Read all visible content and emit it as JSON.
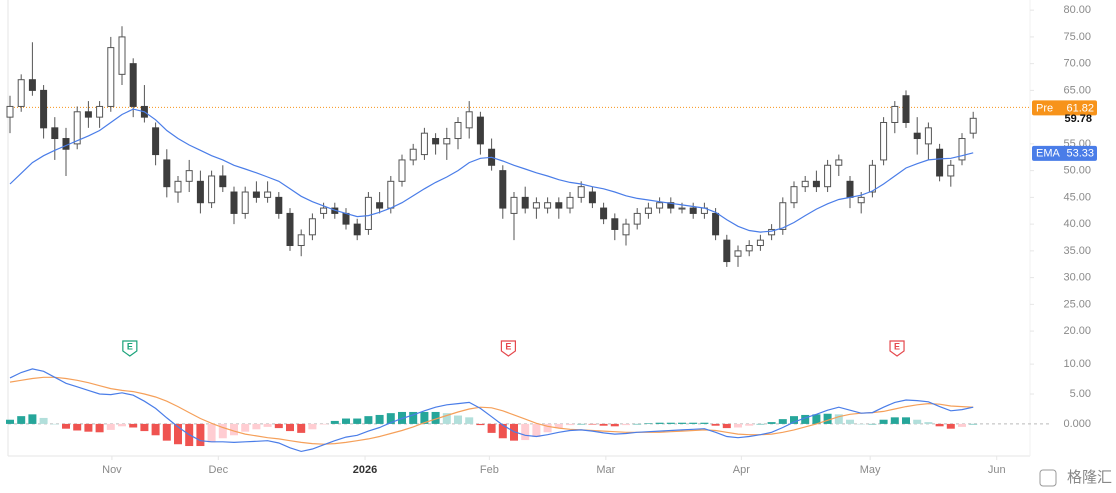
{
  "chart_data": [
    {
      "type": "candlestick",
      "open": [
        60,
        62,
        67,
        65,
        58,
        56,
        55,
        61,
        60,
        62,
        68,
        70,
        62,
        58,
        52,
        46,
        48,
        48,
        44,
        49,
        46,
        42,
        46,
        45,
        45,
        42,
        36,
        38,
        42,
        43,
        42,
        40,
        39,
        44,
        43,
        48,
        52,
        53,
        56,
        55,
        56,
        58,
        60,
        54,
        50,
        42,
        45,
        43,
        43,
        44,
        43,
        45,
        46,
        43,
        41,
        38,
        40,
        42,
        43,
        44,
        43,
        43,
        42,
        42,
        37,
        34,
        35,
        36,
        38,
        39,
        44,
        47,
        48,
        47,
        51,
        48,
        44,
        46,
        52,
        59,
        64,
        57,
        55,
        54,
        49,
        52,
        57
      ],
      "high": [
        64,
        68,
        74,
        66,
        60,
        58,
        62,
        63,
        63,
        75,
        77,
        71,
        66,
        59,
        54,
        49,
        52,
        50,
        50,
        51,
        47,
        47,
        48,
        48,
        46,
        43,
        39,
        42,
        44,
        44,
        43,
        41,
        46,
        46,
        49,
        53,
        55,
        58,
        57,
        58,
        60,
        63,
        61,
        56,
        51,
        46,
        47,
        45,
        45,
        45,
        46,
        48,
        47,
        44,
        42,
        41,
        43,
        44,
        45,
        45,
        44,
        44,
        44,
        43,
        38,
        36,
        37,
        38,
        40,
        45,
        48,
        49,
        50,
        52,
        53,
        49,
        46,
        52,
        60,
        63,
        65,
        60,
        59,
        55,
        52,
        57,
        61
      ],
      "low": [
        57,
        61,
        64,
        56,
        52,
        49,
        54,
        58,
        58,
        61,
        66,
        60,
        59,
        51,
        45,
        44,
        46,
        42,
        43,
        46,
        40,
        41,
        44,
        44,
        41,
        35,
        34,
        37,
        41,
        41,
        39,
        37,
        38,
        42,
        42,
        47,
        51,
        52,
        53,
        52,
        54,
        56,
        53,
        50,
        41,
        37,
        42,
        41,
        42,
        41,
        42,
        44,
        43,
        40,
        37,
        36,
        39,
        41,
        42,
        42,
        42,
        41,
        41,
        37,
        32,
        32,
        34,
        35,
        37,
        38,
        43,
        46,
        46,
        46,
        49,
        43,
        42,
        45,
        51,
        57,
        58,
        53,
        52,
        48,
        47,
        51,
        56
      ],
      "close": [
        62,
        67,
        65,
        58,
        56,
        54,
        61,
        60,
        62,
        73,
        75,
        62,
        60,
        53,
        47,
        48,
        50,
        44,
        49,
        47,
        42,
        46,
        45,
        46,
        42,
        36,
        38,
        41,
        43,
        42,
        40,
        38,
        45,
        43,
        48,
        52,
        54,
        57,
        55,
        56,
        59,
        61,
        55,
        51,
        43,
        45,
        43,
        44,
        44,
        43,
        45,
        47,
        44,
        41,
        39,
        40,
        42,
        43,
        44,
        43,
        43,
        42,
        43,
        38,
        33,
        35,
        36,
        37,
        39,
        44,
        47,
        48,
        47,
        51,
        52,
        45,
        45,
        51,
        59,
        62,
        59,
        56,
        58,
        49,
        51,
        56,
        59.78
      ],
      "up_color": "#ffffff",
      "down_color": "#3d3d3d",
      "wick_color": "#555555",
      "series": [
        {
          "name": "EMA",
          "color": "#4a7de8",
          "values": [
            47.5,
            49.5,
            51.5,
            52.8,
            53.8,
            54.7,
            55.6,
            56.5,
            57.5,
            59,
            60.5,
            61.5,
            61,
            59.5,
            57.5,
            56,
            54.8,
            53.8,
            52.8,
            52,
            51,
            50.3,
            49.6,
            48.8,
            48,
            46.6,
            45.2,
            44.2,
            43.4,
            42.6,
            42,
            41.4,
            41.6,
            42.2,
            43,
            44,
            45.3,
            46.6,
            47.8,
            48.8,
            50,
            51.5,
            52.3,
            52.5,
            51.8,
            51,
            50.3,
            49.6,
            49,
            48.3,
            47.8,
            47.5,
            47,
            46.6,
            46,
            45.3,
            44.8,
            44.5,
            44.2,
            43.9,
            43.6,
            43.3,
            43,
            42.2,
            40.8,
            39.6,
            38.8,
            38.5,
            38.7,
            39.3,
            40.3,
            41.6,
            42.8,
            43.8,
            44.6,
            45,
            45.4,
            46.2,
            47.5,
            49,
            50.5,
            51.3,
            52,
            52.2,
            52.3,
            52.8,
            53.33
          ]
        }
      ],
      "pre_market": {
        "label": "Pre",
        "value": 61.82,
        "color": "#f7931a"
      },
      "events": [
        {
          "x": 10.7,
          "label": "E",
          "color": "#1aa37a"
        },
        {
          "x": 44.5,
          "label": "E",
          "color": "#e5484d"
        },
        {
          "x": 79.2,
          "label": "E",
          "color": "#e5484d"
        }
      ],
      "ylim": [
        17.4,
        81.9
      ],
      "yticks": [
        {
          "value": 80,
          "label": "80.00"
        },
        {
          "value": 75,
          "label": "75.00"
        },
        {
          "value": 70,
          "label": "70.00"
        },
        {
          "value": 65,
          "label": "65.00"
        },
        {
          "value": 55,
          "label": "55.00"
        },
        {
          "value": 50,
          "label": "50.00"
        },
        {
          "value": 45,
          "label": "45.00"
        },
        {
          "value": 40,
          "label": "40.00"
        },
        {
          "value": 35,
          "label": "35.00"
        },
        {
          "value": 30,
          "label": "30.00"
        },
        {
          "value": 25,
          "label": "25.00"
        },
        {
          "value": 20,
          "label": "20.00"
        }
      ],
      "xlim": [
        -0.5,
        91
      ],
      "xticks": [
        {
          "value": 9.1,
          "label": "Nov"
        },
        {
          "value": 18.6,
          "label": "Dec"
        },
        {
          "value": 31.7,
          "label": "2026"
        },
        {
          "value": 42.8,
          "label": "Feb"
        },
        {
          "value": 53.2,
          "label": "Mar"
        },
        {
          "value": 65.3,
          "label": "Apr"
        },
        {
          "value": 76.8,
          "label": "May"
        },
        {
          "value": 88.1,
          "label": "Jun"
        }
      ],
      "watermark": "格隆汇"
    },
    {
      "type": "macd",
      "macd": {
        "color": "#4a7de8",
        "values": [
          7.7,
          8.6,
          9.2,
          8.8,
          7.8,
          6.8,
          6.2,
          5.6,
          5,
          4.9,
          5.2,
          4.8,
          3.8,
          2.6,
          1,
          -0.5,
          -1.8,
          -2.8,
          -3,
          -3,
          -3.1,
          -3,
          -2.9,
          -2.8,
          -3.2,
          -4,
          -4.6,
          -4.2,
          -3.5,
          -2.8,
          -2.2,
          -1.9,
          -1.2,
          -0.6,
          0.2,
          0.9,
          1.5,
          2.2,
          2.8,
          3.2,
          3.4,
          3.6,
          2.6,
          1.2,
          -0.2,
          -1.3,
          -1.9,
          -2.1,
          -1.8,
          -1.4,
          -1.1,
          -1,
          -1.2,
          -1.5,
          -1.7,
          -1.6,
          -1.4,
          -1.3,
          -1.2,
          -1.1,
          -1,
          -0.9,
          -0.8,
          -1.4,
          -2.1,
          -2.3,
          -2.1,
          -1.8,
          -1.4,
          -0.6,
          0.3,
          1,
          1.6,
          2.3,
          2.8,
          2.3,
          1.8,
          1.9,
          2.8,
          3.6,
          4,
          3.9,
          3.7,
          2.9,
          2.2,
          2.4,
          2.8
        ]
      },
      "signal": {
        "color": "#f5a05a",
        "values": [
          7,
          7.3,
          7.6,
          7.8,
          7.8,
          7.6,
          7.3,
          6.9,
          6.4,
          5.9,
          5.6,
          5.4,
          5,
          4.5,
          3.8,
          2.9,
          1.9,
          0.9,
          0.1,
          -0.6,
          -1.2,
          -1.7,
          -2,
          -2.3,
          -2.5,
          -2.8,
          -3.1,
          -3.3,
          -3.4,
          -3.3,
          -3.1,
          -2.8,
          -2.5,
          -2.1,
          -1.6,
          -1.1,
          -0.5,
          0.2,
          0.8,
          1.4,
          2,
          2.5,
          2.8,
          2.7,
          2.2,
          1.5,
          0.8,
          0.1,
          -0.4,
          -0.7,
          -0.9,
          -1,
          -1.1,
          -1.2,
          -1.3,
          -1.4,
          -1.4,
          -1.4,
          -1.4,
          -1.3,
          -1.2,
          -1.1,
          -1,
          -1.1,
          -1.4,
          -1.7,
          -1.8,
          -1.8,
          -1.7,
          -1.4,
          -1,
          -0.5,
          0,
          0.6,
          1.2,
          1.6,
          1.8,
          1.9,
          2.1,
          2.5,
          2.9,
          3.2,
          3.4,
          3.3,
          3,
          2.9,
          2.8
        ]
      },
      "histogram": {
        "colors": [
          "#26a69a",
          "#b2dfdb",
          "#ef5350",
          "#ffcdd2"
        ],
        "values": [
          0.7,
          1.3,
          1.6,
          1,
          0,
          -0.8,
          -1.1,
          -1.3,
          -1.4,
          -1,
          -0.4,
          -0.6,
          -1.2,
          -1.9,
          -2.8,
          -3.4,
          -3.7,
          -3.7,
          -3.1,
          -2.4,
          -1.9,
          -1.3,
          -0.9,
          -0.5,
          -0.7,
          -1.2,
          -1.5,
          -0.9,
          -0.1,
          0.5,
          0.9,
          0.9,
          1.3,
          1.5,
          1.8,
          2,
          2,
          2,
          2,
          1.8,
          1.4,
          1.1,
          -0.2,
          -1.5,
          -2.4,
          -2.8,
          -2.7,
          -2.2,
          -1.4,
          -0.7,
          -0.2,
          0,
          -0.1,
          -0.3,
          -0.4,
          -0.2,
          0,
          0.1,
          0.2,
          0.2,
          0.2,
          0.2,
          0.2,
          -0.3,
          -0.7,
          -0.6,
          -0.3,
          0,
          0.3,
          0.8,
          1.3,
          1.5,
          1.6,
          1.7,
          1.6,
          0.7,
          0,
          0,
          0.7,
          1.1,
          1.1,
          0.7,
          0.3,
          -0.4,
          -0.8,
          -0.5,
          0
        ]
      },
      "ylim": [
        -5.2,
        13.2
      ],
      "yticks": [
        {
          "value": 10,
          "label": "10.00"
        },
        {
          "value": 5,
          "label": "5.00"
        },
        {
          "value": 0,
          "label": "0.000"
        }
      ]
    }
  ]
}
